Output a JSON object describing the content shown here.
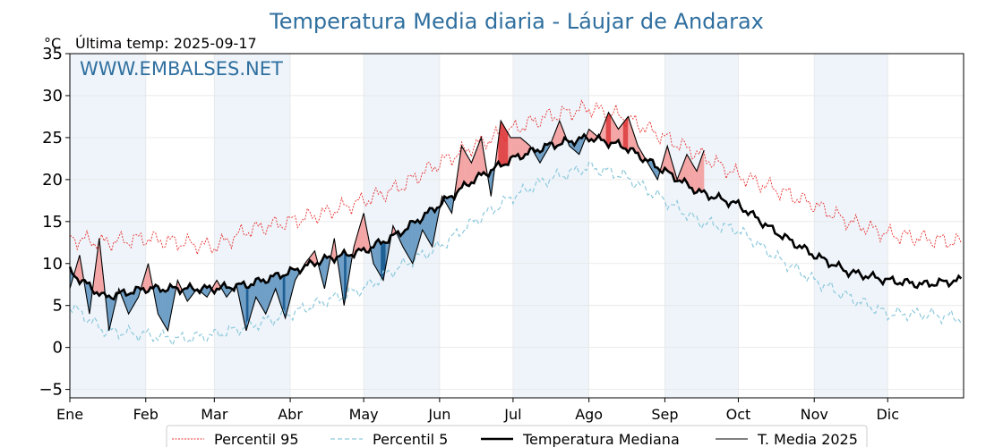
{
  "title": "Temperatura Media diaria - Láujar de Andarax",
  "unit_label": "°C",
  "last_temp_label": "Última temp: 2025-09-17",
  "watermark": "WWW.EMBALSES.NET",
  "colors": {
    "title": "#2f6f9f",
    "p95": "#e8312f",
    "p5": "#8ec9dc",
    "median": "#000000",
    "current": "#000000",
    "above_fill": "#f4a6a6",
    "above_strong": "#e0484a",
    "below_fill": "#6f9fc6",
    "below_strong": "#1f5f95",
    "band": "#eef4fa"
  },
  "chart_data": {
    "type": "line",
    "title": "Temperatura Media diaria - Láujar de Andarax",
    "ylabel": "°C",
    "xlim": [
      1,
      366
    ],
    "ylim": [
      -6,
      35
    ],
    "yticks": [
      -5,
      0,
      5,
      10,
      15,
      20,
      25,
      30,
      35
    ],
    "month_labels": [
      "Ene",
      "Feb",
      "Mar",
      "Abr",
      "May",
      "Jun",
      "Jul",
      "Ago",
      "Sep",
      "Oct",
      "Nov",
      "Dic"
    ],
    "month_starts": [
      1,
      32,
      60,
      91,
      121,
      152,
      182,
      213,
      244,
      274,
      305,
      335
    ],
    "grid": true,
    "legend_position": "bottom-center",
    "series": [
      {
        "name": "Percentil 95",
        "style": "dotted",
        "x": [
          1,
          15,
          32,
          46,
          60,
          74,
          91,
          105,
          121,
          135,
          152,
          166,
          182,
          196,
          213,
          227,
          244,
          258,
          274,
          288,
          305,
          319,
          335,
          349,
          365
        ],
        "values": [
          13,
          12.5,
          13,
          12.5,
          12,
          14,
          15,
          16,
          17.5,
          19,
          22,
          24,
          26,
          27.5,
          28.5,
          27.5,
          25,
          23,
          20.5,
          19,
          17,
          15,
          13.5,
          13,
          12.5
        ]
      },
      {
        "name": "Percentil 5",
        "style": "dashed",
        "x": [
          1,
          15,
          32,
          46,
          60,
          74,
          91,
          105,
          121,
          135,
          152,
          166,
          182,
          196,
          213,
          227,
          244,
          258,
          274,
          288,
          305,
          319,
          335,
          349,
          365
        ],
        "values": [
          5,
          2,
          1.5,
          1,
          1.5,
          2.5,
          4,
          5.5,
          7,
          9.5,
          12,
          15,
          18,
          20,
          21.5,
          20.5,
          17.5,
          15,
          14,
          11,
          8,
          6,
          4,
          4,
          3.5
        ]
      },
      {
        "name": "Temperatura Mediana",
        "style": "bold",
        "x": [
          1,
          15,
          32,
          46,
          60,
          74,
          91,
          105,
          121,
          135,
          152,
          166,
          182,
          196,
          213,
          227,
          244,
          258,
          274,
          288,
          305,
          319,
          335,
          349,
          365
        ],
        "values": [
          9,
          6,
          7,
          7,
          7,
          7.5,
          9,
          10.5,
          11.5,
          13.5,
          17,
          20,
          22.5,
          24,
          25,
          24,
          21,
          18.5,
          17,
          14,
          11,
          9,
          8,
          7.5,
          8
        ]
      },
      {
        "name": "T. Media 2025",
        "style": "thin",
        "x": [
          1,
          5,
          9,
          13,
          17,
          21,
          25,
          29,
          33,
          37,
          41,
          45,
          49,
          53,
          57,
          61,
          65,
          69,
          73,
          77,
          81,
          85,
          89,
          93,
          97,
          101,
          105,
          109,
          113,
          117,
          121,
          125,
          129,
          133,
          137,
          141,
          145,
          149,
          153,
          157,
          161,
          165,
          169,
          173,
          177,
          181,
          185,
          189,
          193,
          197,
          201,
          205,
          209,
          213,
          217,
          221,
          225,
          229,
          233,
          237,
          241,
          245,
          249,
          253,
          257,
          260
        ],
        "values": [
          7,
          11,
          4,
          13,
          2,
          7,
          4,
          6,
          10,
          4,
          2,
          8,
          5.5,
          7,
          6,
          8,
          6,
          7.5,
          2,
          6,
          4,
          7,
          3.5,
          8,
          10,
          11.5,
          7,
          13,
          5,
          12,
          16,
          10,
          8,
          14.5,
          12,
          10,
          14,
          12,
          18,
          16,
          24,
          22,
          25,
          18,
          27,
          25,
          25,
          24,
          22,
          24,
          27,
          24,
          23,
          26,
          25,
          28,
          26,
          27.5,
          24,
          22,
          20,
          24,
          20,
          23,
          21,
          23.5
        ]
      }
    ]
  },
  "legend": {
    "p95": "Percentil 95",
    "p5": "Percentil 5",
    "median": "Temperatura Mediana",
    "current": "T. Media 2025"
  }
}
